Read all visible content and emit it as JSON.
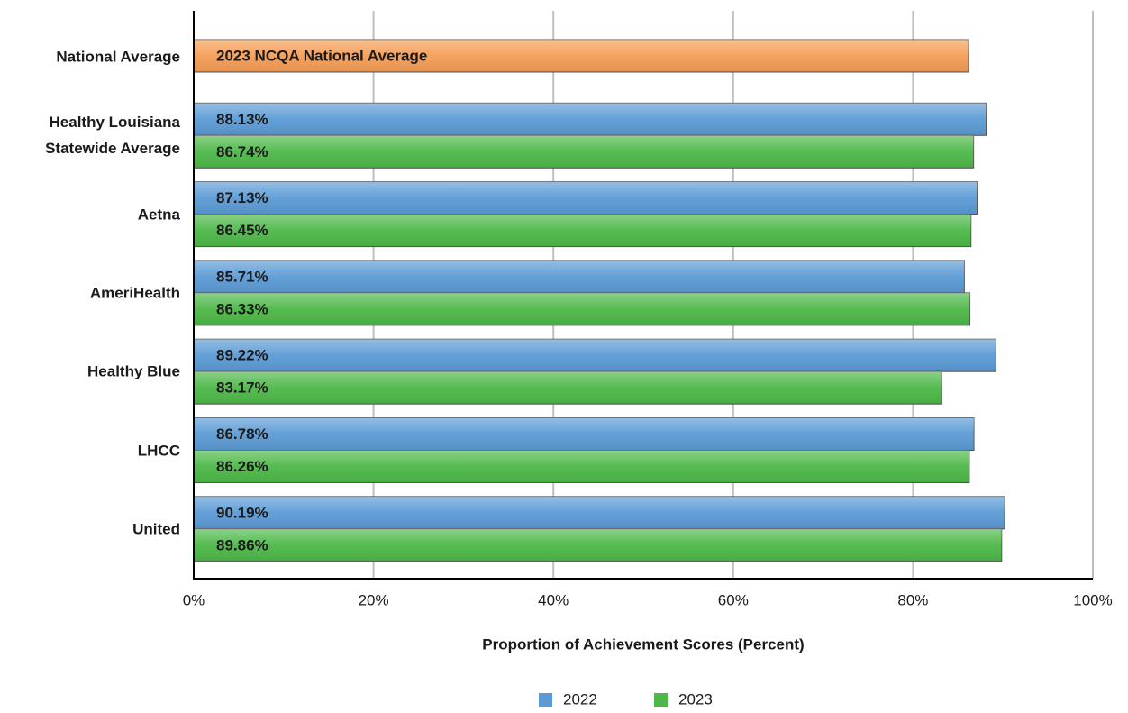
{
  "chart_data": {
    "type": "bar",
    "orientation": "horizontal",
    "x_axis_label": "Proportion of Achievement Scores (Percent)",
    "xlim": [
      0,
      100
    ],
    "xticks": [
      {
        "value": 0,
        "label": "0%"
      },
      {
        "value": 20,
        "label": "20%"
      },
      {
        "value": 40,
        "label": "40%"
      },
      {
        "value": 60,
        "label": "60%"
      },
      {
        "value": 80,
        "label": "80%"
      },
      {
        "value": 100,
        "label": "100%"
      }
    ],
    "grid": true,
    "legend": "bottom",
    "national_average": {
      "category": "National Average",
      "label": "2023 NCQA National Average",
      "value": 86.17,
      "color": "#f59d56"
    },
    "categories": [
      "Healthy Louisiana Statewide Average",
      "Aetna",
      "AmeriHealth",
      "Healthy Blue",
      "LHCC",
      "United"
    ],
    "series": [
      {
        "name": "2022",
        "color": "#5b9bd5",
        "values": [
          88.13,
          87.13,
          85.71,
          89.22,
          86.78,
          90.19
        ],
        "value_labels": [
          "88.13%",
          "87.13%",
          "85.71%",
          "89.22%",
          "86.78%",
          "90.19%"
        ]
      },
      {
        "name": "2023",
        "color": "#4db848",
        "values": [
          86.74,
          86.45,
          86.33,
          83.17,
          86.26,
          89.86
        ],
        "value_labels": [
          "86.74%",
          "86.45%",
          "86.33%",
          "83.17%",
          "86.26%",
          "89.86%"
        ]
      }
    ]
  }
}
